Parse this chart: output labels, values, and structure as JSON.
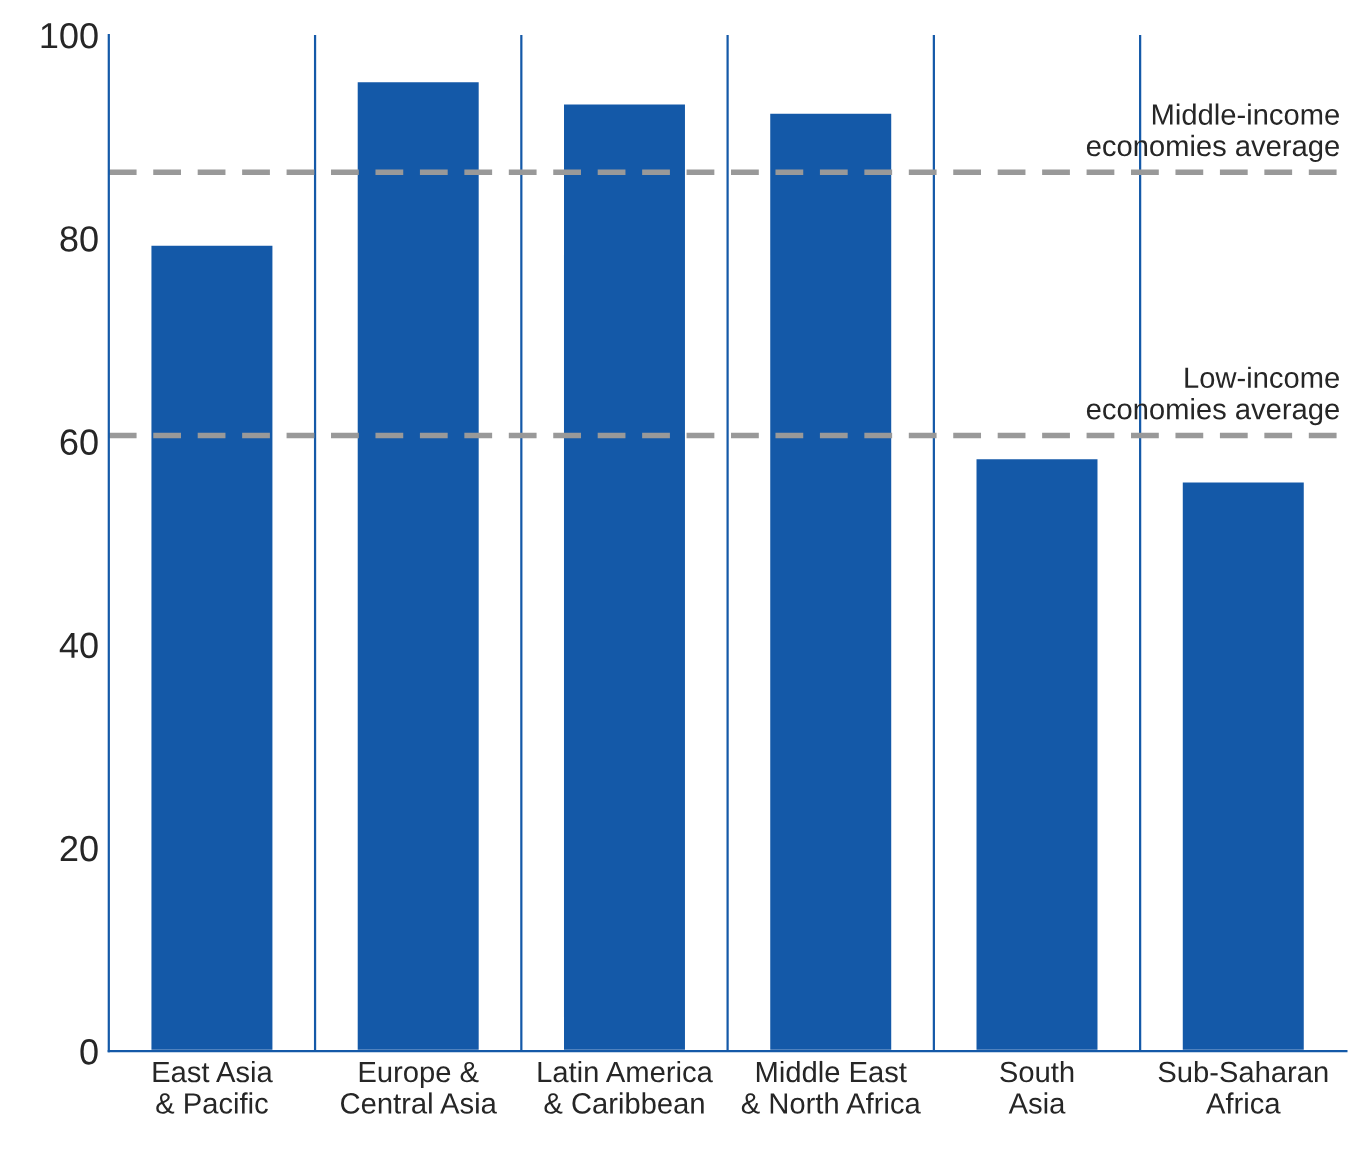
{
  "chart_data": {
    "type": "bar",
    "categories": [
      "East Asia\n& Pacific",
      "Europe &\nCentral Asia",
      "Latin America\n& Caribbean",
      "Middle East\n& North Africa",
      "South\nAsia",
      "Sub-Saharan\nAfrica"
    ],
    "values": [
      79.4,
      95.5,
      93.3,
      92.4,
      58.4,
      56.1
    ],
    "color": "#1459a8",
    "ylim": [
      0,
      100
    ],
    "yticks": [
      0,
      20,
      40,
      60,
      80,
      100
    ],
    "grid": "x",
    "ref_lines": [
      {
        "axis": "y",
        "value": 86.5,
        "label": "Middle-income\neconomies average",
        "color": "#999999",
        "line_style": "dashed"
      },
      {
        "axis": "y",
        "value": 60.6,
        "label": "Low-income\neconomies average",
        "color": "#999999",
        "line_style": "dashed"
      }
    ]
  }
}
